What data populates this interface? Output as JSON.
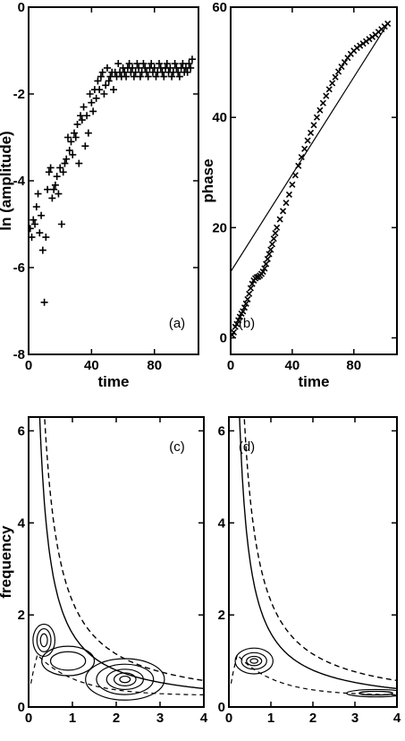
{
  "chart_data": [
    {
      "id": "a",
      "type": "scatter",
      "panel_label": "(a)",
      "xlabel": "time",
      "ylabel": "ln (amplitude)",
      "xlim": [
        0,
        108
      ],
      "ylim": [
        -8,
        0
      ],
      "xticks": [
        0,
        40,
        80
      ],
      "yticks": [
        -8,
        -6,
        -4,
        -2,
        0
      ],
      "marker": "+",
      "series": [
        {
          "x": [
            1,
            2,
            3,
            4,
            5,
            6,
            7,
            8,
            9,
            10,
            11,
            12,
            13,
            14,
            15,
            16,
            17,
            18,
            19,
            20,
            21,
            22,
            23,
            24,
            25,
            26,
            27,
            28,
            29,
            30,
            31,
            32,
            33,
            34,
            35,
            36,
            37,
            38,
            39,
            40,
            41,
            42,
            43,
            44,
            45,
            46,
            47,
            48,
            49,
            50,
            51,
            52,
            53,
            54,
            55,
            56,
            57,
            58,
            59,
            60,
            61,
            62,
            63,
            64,
            65,
            66,
            67,
            68,
            69,
            70,
            71,
            72,
            73,
            74,
            75,
            76,
            77,
            78,
            79,
            80,
            81,
            82,
            83,
            84,
            85,
            86,
            87,
            88,
            89,
            90,
            91,
            92,
            93,
            94,
            95,
            96,
            97,
            98,
            99,
            100,
            101,
            102,
            103,
            104
          ],
          "y": [
            -5.1,
            -5.3,
            -4.9,
            -5.0,
            -4.6,
            -4.3,
            -5.2,
            -4.8,
            -5.6,
            -6.8,
            -5.3,
            -4.2,
            -3.8,
            -3.7,
            -4.4,
            -4.2,
            -4.1,
            -3.9,
            -4.3,
            -3.7,
            -5.0,
            -3.8,
            -3.6,
            -3.5,
            -3.0,
            -3.3,
            -3.1,
            -3.4,
            -2.9,
            -3.0,
            -2.7,
            -3.6,
            -2.5,
            -2.6,
            -2.3,
            -3.2,
            -2.5,
            -2.9,
            -2.0,
            -2.2,
            -2.4,
            -1.9,
            -2.1,
            -1.7,
            -1.9,
            -1.6,
            -1.5,
            -2.0,
            -1.8,
            -1.4,
            -1.7,
            -1.6,
            -1.5,
            -1.9,
            -1.5,
            -1.6,
            -1.3,
            -1.5,
            -1.6,
            -1.4,
            -1.5,
            -1.6,
            -1.4,
            -1.3,
            -1.5,
            -1.4,
            -1.6,
            -1.5,
            -1.3,
            -1.4,
            -1.6,
            -1.5,
            -1.3,
            -1.4,
            -1.5,
            -1.6,
            -1.4,
            -1.3,
            -1.5,
            -1.4,
            -1.6,
            -1.5,
            -1.3,
            -1.4,
            -1.5,
            -1.6,
            -1.4,
            -1.3,
            -1.5,
            -1.4,
            -1.6,
            -1.5,
            -1.3,
            -1.4,
            -1.5,
            -1.6,
            -1.4,
            -1.3,
            -1.5,
            -1.4,
            -1.5,
            -1.3,
            -1.4,
            -1.2
          ]
        }
      ]
    },
    {
      "id": "b",
      "type": "scatter",
      "panel_label": "(b)",
      "xlabel": "time",
      "ylabel": "phase",
      "xlim": [
        0,
        108
      ],
      "ylim": [
        -3,
        60
      ],
      "xticks": [
        0,
        40,
        80
      ],
      "yticks": [
        0,
        20,
        40,
        60
      ],
      "marker": "x",
      "series": [
        {
          "x": [
            1,
            2,
            3,
            4,
            5,
            6,
            7,
            8,
            9,
            10,
            11,
            12,
            13,
            14,
            15,
            16,
            17,
            18,
            19,
            20,
            21,
            22,
            23,
            24,
            25,
            26,
            27,
            28,
            29,
            30,
            32,
            34,
            36,
            38,
            40,
            42,
            44,
            46,
            48,
            50,
            52,
            54,
            56,
            58,
            60,
            62,
            64,
            66,
            68,
            70,
            72,
            74,
            76,
            78,
            80,
            82,
            84,
            86,
            88,
            90,
            92,
            94,
            96,
            98,
            100,
            102
          ],
          "y": [
            0.5,
            1.0,
            2.0,
            2.5,
            3.2,
            3.8,
            4.4,
            4.8,
            5.5,
            6.2,
            7.0,
            8.0,
            9.0,
            9.8,
            10.4,
            10.8,
            11.0,
            11.1,
            11.3,
            11.6,
            12.0,
            12.6,
            13.4,
            14.3,
            15.2,
            16.0,
            17.0,
            18.0,
            19.0,
            20.0,
            21.5,
            23.0,
            24.5,
            26.0,
            27.8,
            29.5,
            31.2,
            32.8,
            34.3,
            35.8,
            37.2,
            38.6,
            40.0,
            41.3,
            42.6,
            43.9,
            45.1,
            46.2,
            47.3,
            48.3,
            49.2,
            50.0,
            50.8,
            51.5,
            52.1,
            52.6,
            53.0,
            53.4,
            53.8,
            54.2,
            54.6,
            55.0,
            55.5,
            56.0,
            56.5,
            57.0
          ]
        }
      ],
      "reference_line": {
        "x": [
          0,
          102
        ],
        "y": [
          12,
          57
        ]
      }
    },
    {
      "id": "c",
      "type": "line",
      "panel_label": "(c)",
      "xlabel": "",
      "ylabel": "frequency",
      "xlim": [
        0,
        4
      ],
      "ylim": [
        0,
        6.3
      ],
      "xticks": [
        0,
        1,
        2,
        3,
        4
      ],
      "yticks": [
        0,
        2,
        4,
        6
      ],
      "curves": [
        {
          "style": "solid",
          "k": 1.6
        },
        {
          "style": "dashed",
          "k": 2.3
        }
      ],
      "contours": [
        {
          "cx": 2.2,
          "cy": 0.6,
          "rx": [
            0.9,
            0.65,
            0.42,
            0.25,
            0.12
          ],
          "ry": [
            0.45,
            0.33,
            0.22,
            0.14,
            0.07
          ]
        },
        {
          "cx": 0.35,
          "cy": 1.45,
          "rx": [
            0.25,
            0.16,
            0.08
          ],
          "ry": [
            0.35,
            0.25,
            0.14
          ]
        },
        {
          "cx": 0.9,
          "cy": 1.0,
          "rx": [
            0.6,
            0.4
          ],
          "ry": [
            0.32,
            0.2
          ]
        }
      ]
    },
    {
      "id": "d",
      "type": "line",
      "panel_label": "(d)",
      "xlabel": "",
      "ylabel": "",
      "xlim": [
        0,
        4
      ],
      "ylim": [
        0,
        6.3
      ],
      "xticks": [
        0,
        1,
        2,
        3,
        4
      ],
      "yticks": [
        0,
        2,
        4,
        6
      ],
      "curves": [
        {
          "style": "solid",
          "k": 1.6
        },
        {
          "style": "dashed",
          "k": 2.3
        }
      ],
      "contours": [
        {
          "cx": 0.6,
          "cy": 1.0,
          "rx": [
            0.45,
            0.3,
            0.18,
            0.09
          ],
          "ry": [
            0.28,
            0.18,
            0.1,
            0.05
          ]
        },
        {
          "cx": 3.5,
          "cy": 0.3,
          "rx": [
            0.7,
            0.4
          ],
          "ry": [
            0.08,
            0.04
          ]
        }
      ]
    }
  ]
}
